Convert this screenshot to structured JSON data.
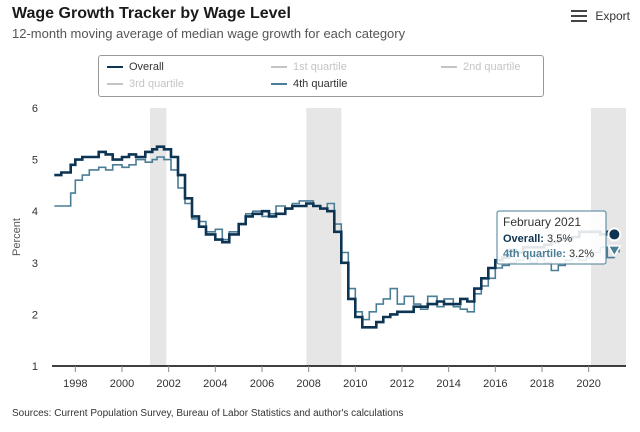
{
  "header": {
    "title": "Wage Growth Tracker by Wage Level",
    "subtitle": "12-month moving average of median wage growth for each category",
    "export_label": "Export",
    "export_icon": "menu-icon"
  },
  "source": "Sources: Current Population Survey, Bureau of Labor Statistics and author's calculations",
  "colors": {
    "overall": "#0d3553",
    "q4": "#4a7d96",
    "muted": "#c4c4c4",
    "recession": "#e6e6e6",
    "axis": "#000000"
  },
  "chart_data": {
    "type": "line",
    "title": "Wage Growth Tracker by Wage Level",
    "subtitle": "12-month moving average of median wage growth for each category",
    "xlabel": "",
    "ylabel": "Percent",
    "xlim": [
      1997.0,
      2021.6
    ],
    "ylim": [
      1,
      6
    ],
    "x_ticks": [
      1998,
      2000,
      2002,
      2004,
      2006,
      2008,
      2010,
      2012,
      2014,
      2016,
      2018,
      2020
    ],
    "y_ticks": [
      1,
      2,
      3,
      4,
      5,
      6
    ],
    "grid": false,
    "legend": {
      "position": "top",
      "items": [
        {
          "name": "Overall",
          "state": "visible"
        },
        {
          "name": "1st quartile",
          "state": "hidden"
        },
        {
          "name": "2nd quartile",
          "state": "hidden"
        },
        {
          "name": "3rd quartile",
          "state": "hidden"
        },
        {
          "name": "4th quartile",
          "state": "visible"
        }
      ]
    },
    "recessions": [
      [
        2001.2,
        2001.9
      ],
      [
        2007.9,
        2009.4
      ],
      [
        2020.1,
        2021.6
      ]
    ],
    "series": [
      {
        "name": "Overall",
        "x": [
          1997.1,
          1997.4,
          1997.8,
          1998.0,
          1998.3,
          1998.6,
          1999.0,
          1999.3,
          1999.6,
          2000.0,
          2000.3,
          2000.6,
          2001.0,
          2001.3,
          2001.5,
          2001.8,
          2002.1,
          2002.4,
          2002.7,
          2003.0,
          2003.3,
          2003.6,
          2004.0,
          2004.3,
          2004.6,
          2005.0,
          2005.3,
          2005.6,
          2006.0,
          2006.3,
          2006.6,
          2007.0,
          2007.3,
          2007.6,
          2007.9,
          2008.2,
          2008.5,
          2008.8,
          2009.1,
          2009.4,
          2009.7,
          2010.0,
          2010.3,
          2010.6,
          2010.9,
          2011.2,
          2011.5,
          2011.8,
          2012.1,
          2012.5,
          2012.8,
          2013.1,
          2013.5,
          2013.8,
          2014.2,
          2014.5,
          2014.8,
          2015.1,
          2015.4,
          2015.7,
          2016.0,
          2016.3,
          2016.6,
          2016.9,
          2017.2,
          2017.5,
          2017.8,
          2018.1,
          2018.4,
          2018.7,
          2019.0,
          2019.3,
          2019.6,
          2019.9,
          2020.2,
          2020.5,
          2020.8,
          2021.1,
          2021.3
        ],
        "values": [
          4.7,
          4.75,
          4.9,
          5.0,
          5.05,
          5.05,
          5.15,
          5.1,
          5.0,
          5.05,
          5.1,
          5.05,
          5.15,
          5.2,
          5.25,
          5.2,
          5.05,
          4.7,
          4.25,
          3.9,
          3.7,
          3.55,
          3.45,
          3.4,
          3.55,
          3.75,
          3.9,
          3.95,
          4.0,
          3.9,
          3.95,
          4.05,
          4.1,
          4.1,
          4.15,
          4.1,
          4.05,
          4.0,
          3.6,
          3.0,
          2.3,
          1.95,
          1.75,
          1.75,
          1.85,
          1.95,
          2.0,
          2.05,
          2.05,
          2.15,
          2.15,
          2.2,
          2.25,
          2.2,
          2.2,
          2.3,
          2.25,
          2.5,
          2.7,
          2.9,
          3.05,
          3.1,
          3.25,
          3.2,
          3.3,
          3.3,
          3.3,
          3.35,
          3.4,
          3.45,
          3.45,
          3.5,
          3.6,
          3.6,
          3.6,
          3.55,
          3.6,
          3.55,
          3.5
        ]
      },
      {
        "name": "4th quartile",
        "x": [
          1997.1,
          1997.4,
          1997.8,
          1998.0,
          1998.3,
          1998.6,
          1999.0,
          1999.3,
          1999.6,
          2000.0,
          2000.3,
          2000.6,
          2001.0,
          2001.3,
          2001.5,
          2001.8,
          2002.1,
          2002.4,
          2002.7,
          2003.0,
          2003.3,
          2003.6,
          2004.0,
          2004.3,
          2004.6,
          2005.0,
          2005.3,
          2005.6,
          2006.0,
          2006.3,
          2006.6,
          2007.0,
          2007.3,
          2007.6,
          2007.9,
          2008.2,
          2008.5,
          2008.8,
          2009.1,
          2009.4,
          2009.7,
          2010.0,
          2010.3,
          2010.6,
          2010.9,
          2011.2,
          2011.5,
          2011.8,
          2012.1,
          2012.5,
          2012.8,
          2013.1,
          2013.5,
          2013.8,
          2014.2,
          2014.5,
          2014.8,
          2015.1,
          2015.4,
          2015.7,
          2016.0,
          2016.3,
          2016.6,
          2016.9,
          2017.2,
          2017.5,
          2017.8,
          2018.1,
          2018.4,
          2018.7,
          2019.0,
          2019.3,
          2019.6,
          2019.9,
          2020.2,
          2020.5,
          2020.8,
          2021.1,
          2021.3
        ],
        "values": [
          4.1,
          4.1,
          4.35,
          4.6,
          4.7,
          4.8,
          4.85,
          4.8,
          4.9,
          4.85,
          4.9,
          5.0,
          4.95,
          5.0,
          5.05,
          5.0,
          4.8,
          4.45,
          4.15,
          3.85,
          3.8,
          3.6,
          3.65,
          3.45,
          3.6,
          3.75,
          3.95,
          4.0,
          3.9,
          3.95,
          4.1,
          4.05,
          4.15,
          4.2,
          4.2,
          4.1,
          4.05,
          4.15,
          3.75,
          3.2,
          2.5,
          2.05,
          1.9,
          2.05,
          2.2,
          2.3,
          2.5,
          2.2,
          2.35,
          2.2,
          2.1,
          2.35,
          2.15,
          2.3,
          2.15,
          2.1,
          2.05,
          2.4,
          2.55,
          2.7,
          2.9,
          2.95,
          3.0,
          3.05,
          3.1,
          3.0,
          3.1,
          3.0,
          2.85,
          2.95,
          3.05,
          3.1,
          3.05,
          3.1,
          3.2,
          3.3,
          3.1,
          3.25,
          3.2
        ]
      }
    ],
    "tooltip": {
      "title": "February 2021",
      "x": 2021.1,
      "rows": [
        {
          "label": "Overall",
          "value": "3.5%"
        },
        {
          "label": "4th quartile",
          "value": "3.2%"
        }
      ]
    }
  }
}
